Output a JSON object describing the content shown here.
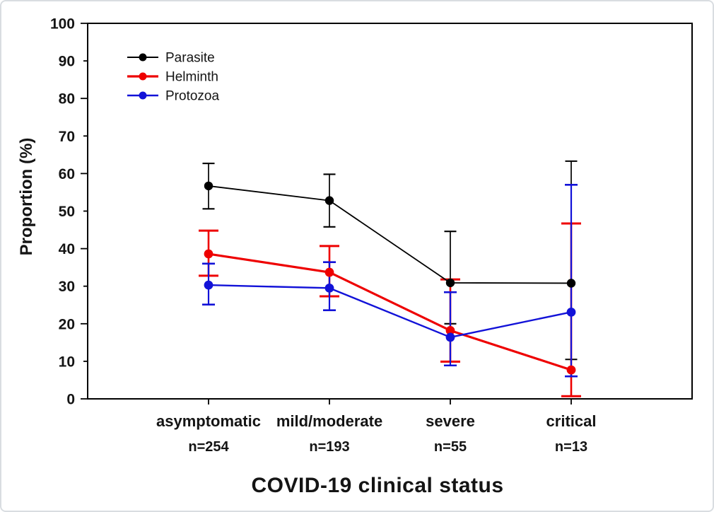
{
  "figure": {
    "background": "#ffffff",
    "border_color": "#d9dde1",
    "axis_color": "#000000",
    "text_color": "#141414"
  },
  "chart_data": {
    "type": "line",
    "title": "",
    "xlabel": "COVID-19 clinical status",
    "ylabel": "Proportion (%)",
    "ylim": [
      0,
      100
    ],
    "ytick_labels": [
      "0",
      "10",
      "20",
      "30",
      "40",
      "50",
      "60",
      "70",
      "80",
      "90",
      "100"
    ],
    "grid": false,
    "legend_position": "top-left-inside",
    "error_bars_shown": true,
    "categories": [
      {
        "label": "asymptomatic",
        "n": "n=254"
      },
      {
        "label": "mild/moderate",
        "n": "n=193"
      },
      {
        "label": "severe",
        "n": "n=55"
      },
      {
        "label": "critical",
        "n": "n=13"
      }
    ],
    "series": [
      {
        "name": "Parasite",
        "color": "#000000",
        "values": [
          56.7,
          52.8,
          30.9,
          30.8
        ],
        "err_low": [
          50.6,
          45.8,
          20.0,
          10.5
        ],
        "err_high": [
          62.7,
          59.8,
          44.6,
          63.3
        ]
      },
      {
        "name": "Helminth",
        "color": "#ee0000",
        "values": [
          38.6,
          33.7,
          18.2,
          7.7
        ],
        "err_low": [
          32.8,
          27.3,
          9.9,
          0.7
        ],
        "err_high": [
          44.8,
          40.7,
          31.8,
          46.7
        ]
      },
      {
        "name": "Protozoa",
        "color": "#1212d8",
        "values": [
          30.3,
          29.5,
          16.4,
          23.1
        ],
        "err_low": [
          25.1,
          23.6,
          8.9,
          6.0
        ],
        "err_high": [
          36.0,
          36.4,
          28.4,
          57.0
        ]
      }
    ]
  }
}
